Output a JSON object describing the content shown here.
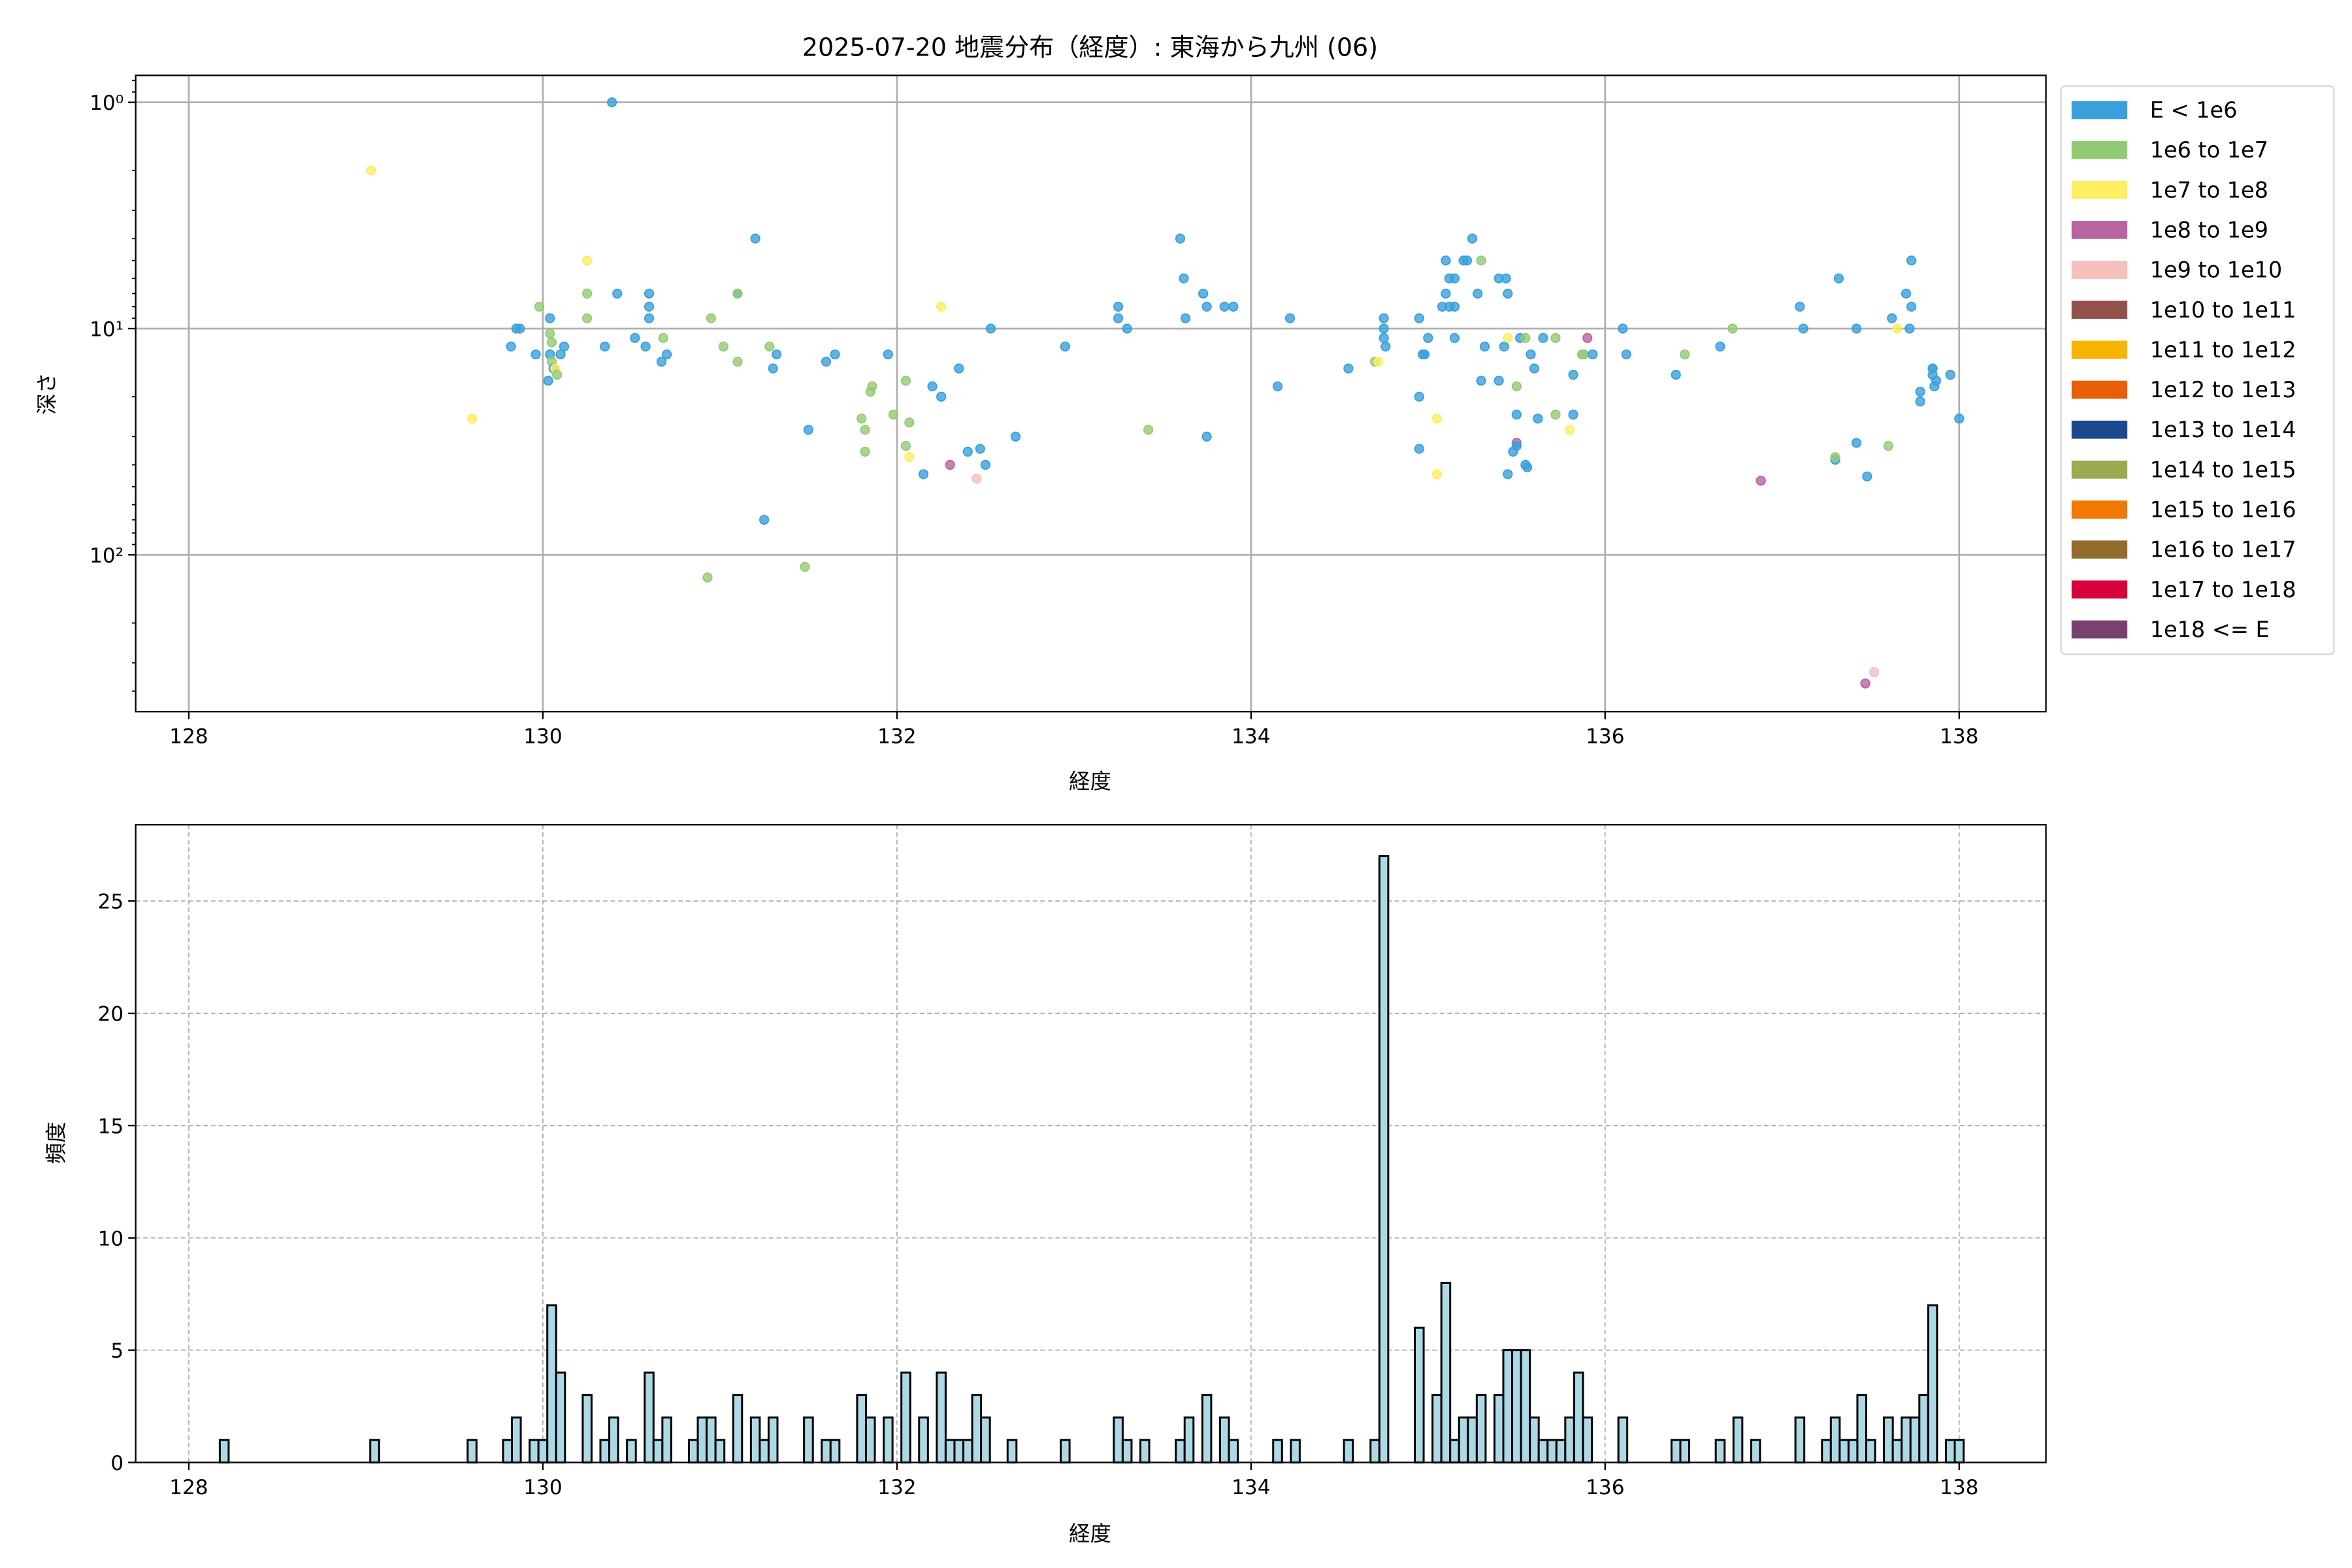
{
  "chart_data": [
    {
      "type": "scatter",
      "title": "2025-07-20 地震分布（経度）: 東海から九州 (06)",
      "xlabel": "経度",
      "ylabel": "深さ",
      "xlim": [
        127.7,
        138.49
      ],
      "ylim": [
        493,
        0.76
      ],
      "yscale": "log",
      "y_inverted": true,
      "xticks": [
        128,
        130,
        132,
        134,
        136,
        138
      ],
      "xtick_labels": [
        "128",
        "130",
        "132",
        "134",
        "136",
        "138"
      ],
      "yticks": [
        1,
        10,
        100
      ],
      "ytick_labels": [
        "10⁰",
        "10¹",
        "10²"
      ],
      "grid": true,
      "legend_position": "outside-right",
      "legend": [
        {
          "label": "E < 1e6",
          "color": "#3aa0dc"
        },
        {
          "label": "1e6 to 1e7",
          "color": "#93cb75"
        },
        {
          "label": "1e7 to 1e8",
          "color": "#fdee62"
        },
        {
          "label": "1e8 to 1e9",
          "color": "#b964a2"
        },
        {
          "label": "1e9 to 1e10",
          "color": "#f5bfbb"
        },
        {
          "label": "1e10 to 1e11",
          "color": "#93514b"
        },
        {
          "label": "1e11 to 1e12",
          "color": "#f7b500"
        },
        {
          "label": "1e12 to 1e13",
          "color": "#e95f05"
        },
        {
          "label": "1e13 to 1e14",
          "color": "#1c4890"
        },
        {
          "label": "1e14 to 1e15",
          "color": "#9aab50"
        },
        {
          "label": "1e15 to 1e16",
          "color": "#f07805"
        },
        {
          "label": "1e16 to 1e17",
          "color": "#936c2c"
        },
        {
          "label": "1e17 to 1e18",
          "color": "#d8023a"
        },
        {
          "label": "1e18 <= E",
          "color": "#7a416e"
        }
      ],
      "points_format": [
        "longitude",
        "depth",
        "legend_index"
      ],
      "points": [
        [
          129.03,
          2.0,
          2
        ],
        [
          129.6,
          25,
          2
        ],
        [
          130.39,
          1.0,
          0
        ],
        [
          129.82,
          12,
          0
        ],
        [
          129.87,
          10,
          0
        ],
        [
          129.85,
          10,
          0
        ],
        [
          129.96,
          13,
          0
        ],
        [
          129.98,
          8,
          1
        ],
        [
          130.04,
          9,
          0
        ],
        [
          130.04,
          10.5,
          1
        ],
        [
          130.05,
          11.5,
          1
        ],
        [
          130.04,
          13,
          0
        ],
        [
          130.05,
          14,
          1
        ],
        [
          130.06,
          15,
          0
        ],
        [
          130.03,
          17,
          0
        ],
        [
          130.07,
          15,
          2
        ],
        [
          130.1,
          13,
          0
        ],
        [
          130.12,
          12,
          0
        ],
        [
          130.08,
          16,
          1
        ],
        [
          130.25,
          5,
          2
        ],
        [
          130.25,
          7,
          1
        ],
        [
          130.25,
          9,
          1
        ],
        [
          130.35,
          12,
          0
        ],
        [
          130.42,
          7,
          0
        ],
        [
          130.52,
          11,
          0
        ],
        [
          130.58,
          12,
          0
        ],
        [
          130.6,
          9,
          0
        ],
        [
          130.6,
          8,
          0
        ],
        [
          130.6,
          7,
          0
        ],
        [
          130.67,
          14,
          0
        ],
        [
          130.7,
          13,
          0
        ],
        [
          130.68,
          11,
          1
        ],
        [
          130.95,
          9,
          1
        ],
        [
          131.02,
          12,
          1
        ],
        [
          131.1,
          7,
          0
        ],
        [
          131.1,
          7,
          1
        ],
        [
          131.2,
          4,
          0
        ],
        [
          131.1,
          14,
          1
        ],
        [
          131.25,
          70,
          0
        ],
        [
          130.93,
          126,
          1
        ],
        [
          131.28,
          12,
          1
        ],
        [
          131.3,
          15,
          0
        ],
        [
          131.32,
          13,
          0
        ],
        [
          131.5,
          28,
          0
        ],
        [
          131.48,
          113,
          1
        ],
        [
          131.6,
          14,
          0
        ],
        [
          131.65,
          13,
          0
        ],
        [
          131.8,
          25,
          1
        ],
        [
          131.82,
          28,
          1
        ],
        [
          131.82,
          35,
          1
        ],
        [
          131.85,
          19,
          1
        ],
        [
          131.86,
          18,
          1
        ],
        [
          131.95,
          13,
          0
        ],
        [
          131.98,
          24,
          1
        ],
        [
          132.05,
          17,
          1
        ],
        [
          132.07,
          26,
          1
        ],
        [
          132.05,
          33,
          1
        ],
        [
          132.07,
          37,
          2
        ],
        [
          132.15,
          44,
          0
        ],
        [
          132.2,
          18,
          0
        ],
        [
          132.25,
          20,
          0
        ],
        [
          132.25,
          8,
          2
        ],
        [
          132.3,
          40,
          3
        ],
        [
          132.35,
          15,
          0
        ],
        [
          132.4,
          35,
          0
        ],
        [
          132.47,
          34,
          0
        ],
        [
          132.45,
          46,
          4
        ],
        [
          132.5,
          40,
          0
        ],
        [
          132.53,
          10,
          0
        ],
        [
          132.67,
          30,
          0
        ],
        [
          132.95,
          12,
          0
        ],
        [
          133.25,
          8,
          0
        ],
        [
          133.25,
          9,
          0
        ],
        [
          133.3,
          10,
          0
        ],
        [
          133.42,
          28,
          1
        ],
        [
          133.6,
          4,
          0
        ],
        [
          133.62,
          6,
          0
        ],
        [
          133.63,
          9,
          0
        ],
        [
          133.73,
          7,
          0
        ],
        [
          133.75,
          8,
          0
        ],
        [
          133.75,
          30,
          0
        ],
        [
          133.85,
          8,
          0
        ],
        [
          133.9,
          8,
          0
        ],
        [
          134.15,
          18,
          0
        ],
        [
          134.22,
          9,
          0
        ],
        [
          134.55,
          15,
          0
        ],
        [
          134.7,
          14,
          1
        ],
        [
          134.72,
          14,
          2
        ],
        [
          134.75,
          9,
          0
        ],
        [
          134.75,
          10,
          0
        ],
        [
          134.75,
          11,
          0
        ],
        [
          134.76,
          12,
          0
        ],
        [
          134.95,
          9,
          0
        ],
        [
          134.97,
          13,
          0
        ],
        [
          134.98,
          13,
          0
        ],
        [
          134.95,
          20,
          0
        ],
        [
          134.95,
          34,
          0
        ],
        [
          135.0,
          11,
          0
        ],
        [
          135.05,
          25,
          2
        ],
        [
          135.05,
          44,
          2
        ],
        [
          135.08,
          8,
          0
        ],
        [
          135.1,
          5,
          0
        ],
        [
          135.12,
          6,
          0
        ],
        [
          135.1,
          7,
          0
        ],
        [
          135.12,
          8,
          0
        ],
        [
          135.15,
          8,
          0
        ],
        [
          135.15,
          6,
          0
        ],
        [
          135.15,
          11,
          0
        ],
        [
          135.2,
          5,
          0
        ],
        [
          135.22,
          5,
          0
        ],
        [
          135.25,
          4,
          0
        ],
        [
          135.3,
          5,
          1
        ],
        [
          135.28,
          7,
          0
        ],
        [
          135.32,
          12,
          0
        ],
        [
          135.3,
          17,
          0
        ],
        [
          135.4,
          6,
          0
        ],
        [
          135.44,
          6,
          0
        ],
        [
          135.45,
          7,
          0
        ],
        [
          135.43,
          12,
          0
        ],
        [
          135.4,
          17,
          0
        ],
        [
          135.45,
          11,
          2
        ],
        [
          135.45,
          44,
          0
        ],
        [
          135.48,
          35,
          0
        ],
        [
          135.5,
          32,
          3
        ],
        [
          135.5,
          33,
          0
        ],
        [
          135.5,
          24,
          0
        ],
        [
          135.5,
          18,
          1
        ],
        [
          135.52,
          11,
          0
        ],
        [
          135.55,
          11,
          1
        ],
        [
          135.6,
          15,
          0
        ],
        [
          135.58,
          13,
          0
        ],
        [
          135.62,
          25,
          0
        ],
        [
          135.55,
          40,
          0
        ],
        [
          135.56,
          41,
          0
        ],
        [
          135.65,
          11,
          0
        ],
        [
          135.72,
          11,
          1
        ],
        [
          135.72,
          24,
          1
        ],
        [
          135.8,
          28,
          2
        ],
        [
          135.82,
          24,
          0
        ],
        [
          135.82,
          16,
          0
        ],
        [
          135.87,
          13,
          1
        ],
        [
          135.88,
          13,
          1
        ],
        [
          135.9,
          11,
          3
        ],
        [
          135.93,
          13,
          0
        ],
        [
          136.1,
          10,
          0
        ],
        [
          136.12,
          13,
          0
        ],
        [
          136.4,
          16,
          0
        ],
        [
          136.45,
          13,
          1
        ],
        [
          136.65,
          12,
          0
        ],
        [
          136.72,
          10,
          1
        ],
        [
          136.88,
          47,
          3
        ],
        [
          137.1,
          8,
          0
        ],
        [
          137.12,
          10,
          0
        ],
        [
          137.3,
          38,
          0
        ],
        [
          137.3,
          37,
          1
        ],
        [
          137.32,
          6,
          0
        ],
        [
          137.42,
          10,
          0
        ],
        [
          137.42,
          32,
          0
        ],
        [
          137.48,
          45,
          0
        ],
        [
          137.47,
          370,
          3
        ],
        [
          137.52,
          330,
          4
        ],
        [
          137.6,
          33,
          1
        ],
        [
          137.62,
          9,
          0
        ],
        [
          137.65,
          10,
          2
        ],
        [
          137.7,
          7,
          0
        ],
        [
          137.73,
          8,
          0
        ],
        [
          137.73,
          5,
          0
        ],
        [
          137.72,
          10,
          0
        ],
        [
          137.78,
          19,
          0
        ],
        [
          137.78,
          21,
          0
        ],
        [
          137.85,
          15,
          1
        ],
        [
          137.85,
          15,
          0
        ],
        [
          137.85,
          16,
          0
        ],
        [
          137.87,
          17,
          0
        ],
        [
          137.86,
          18,
          0
        ],
        [
          137.95,
          16,
          0
        ],
        [
          138.0,
          25,
          0
        ]
      ]
    },
    {
      "type": "bar",
      "title": "",
      "xlabel": "経度",
      "ylabel": "頻度",
      "xlim": [
        127.7,
        138.49
      ],
      "ylim": [
        0,
        28.4
      ],
      "xticks": [
        128,
        130,
        132,
        134,
        136,
        138
      ],
      "xtick_labels": [
        "128",
        "130",
        "132",
        "134",
        "136",
        "138"
      ],
      "yticks": [
        0,
        5,
        10,
        15,
        20,
        25
      ],
      "ytick_labels": [
        "0",
        "5",
        "10",
        "15",
        "20",
        "25"
      ],
      "grid": true,
      "bar_color": "#add8e6",
      "edge_color": "#000000",
      "bin_width": 0.05,
      "bins_format": [
        "bin_center_longitude",
        "count"
      ],
      "bins": [
        [
          128.2,
          1
        ],
        [
          129.05,
          1
        ],
        [
          129.6,
          1
        ],
        [
          129.8,
          1
        ],
        [
          129.85,
          2
        ],
        [
          129.95,
          1
        ],
        [
          130.0,
          1
        ],
        [
          130.05,
          7
        ],
        [
          130.1,
          4
        ],
        [
          130.25,
          3
        ],
        [
          130.35,
          1
        ],
        [
          130.4,
          2
        ],
        [
          130.5,
          1
        ],
        [
          130.6,
          4
        ],
        [
          130.65,
          1
        ],
        [
          130.7,
          2
        ],
        [
          130.85,
          1
        ],
        [
          130.9,
          2
        ],
        [
          130.95,
          2
        ],
        [
          131.0,
          1
        ],
        [
          131.1,
          3
        ],
        [
          131.2,
          2
        ],
        [
          131.25,
          1
        ],
        [
          131.3,
          2
        ],
        [
          131.5,
          2
        ],
        [
          131.6,
          1
        ],
        [
          131.65,
          1
        ],
        [
          131.8,
          3
        ],
        [
          131.85,
          2
        ],
        [
          131.95,
          2
        ],
        [
          132.05,
          4
        ],
        [
          132.15,
          2
        ],
        [
          132.25,
          4
        ],
        [
          132.3,
          1
        ],
        [
          132.35,
          1
        ],
        [
          132.4,
          1
        ],
        [
          132.45,
          3
        ],
        [
          132.5,
          2
        ],
        [
          132.65,
          1
        ],
        [
          132.95,
          1
        ],
        [
          133.25,
          2
        ],
        [
          133.3,
          1
        ],
        [
          133.4,
          1
        ],
        [
          133.6,
          1
        ],
        [
          133.65,
          2
        ],
        [
          133.75,
          3
        ],
        [
          133.85,
          2
        ],
        [
          133.9,
          1
        ],
        [
          134.15,
          1
        ],
        [
          134.25,
          1
        ],
        [
          134.55,
          1
        ],
        [
          134.7,
          1
        ],
        [
          134.75,
          27
        ],
        [
          134.95,
          6
        ],
        [
          135.05,
          3
        ],
        [
          135.1,
          8
        ],
        [
          135.15,
          1
        ],
        [
          135.2,
          2
        ],
        [
          135.25,
          2
        ],
        [
          135.3,
          3
        ],
        [
          135.4,
          3
        ],
        [
          135.45,
          5
        ],
        [
          135.5,
          5
        ],
        [
          135.55,
          5
        ],
        [
          135.6,
          2
        ],
        [
          135.65,
          1
        ],
        [
          135.7,
          1
        ],
        [
          135.75,
          1
        ],
        [
          135.8,
          2
        ],
        [
          135.85,
          4
        ],
        [
          135.9,
          2
        ],
        [
          136.1,
          2
        ],
        [
          136.4,
          1
        ],
        [
          136.45,
          1
        ],
        [
          136.65,
          1
        ],
        [
          136.75,
          2
        ],
        [
          136.85,
          1
        ],
        [
          137.1,
          2
        ],
        [
          137.25,
          1
        ],
        [
          137.3,
          2
        ],
        [
          137.35,
          1
        ],
        [
          137.4,
          1
        ],
        [
          137.45,
          3
        ],
        [
          137.5,
          1
        ],
        [
          137.6,
          2
        ],
        [
          137.65,
          1
        ],
        [
          137.7,
          2
        ],
        [
          137.75,
          2
        ],
        [
          137.8,
          3
        ],
        [
          137.85,
          7
        ],
        [
          137.95,
          1
        ],
        [
          138.0,
          1
        ]
      ]
    }
  ]
}
